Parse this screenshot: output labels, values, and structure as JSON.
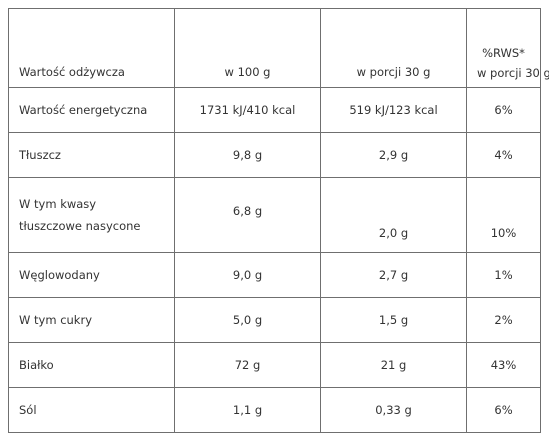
{
  "header": {
    "name": "Wartość odżywcza",
    "per100": "w 100 g",
    "per30": "w porcji 30 g",
    "rws_line1": "%RWS*",
    "rws_line2": "w porcji 30 g"
  },
  "rows": [
    {
      "name": "Wartość energetyczna",
      "per100": "1731 kJ/410 kcal",
      "per30": "519 kJ/123 kcal",
      "rws": "6%"
    },
    {
      "name": "Tłuszcz",
      "per100": "9,8 g",
      "per30": "2,9 g",
      "rws": "4%"
    },
    {
      "name_line1": "W tym kwasy",
      "name_line2": "tłuszczowe nasycone",
      "per100": "6,8 g",
      "per30": "2,0 g",
      "rws": "10%"
    },
    {
      "name": "Węglowodany",
      "per100": "9,0 g",
      "per30": "2,7 g",
      "rws": "1%"
    },
    {
      "name": "W tym cukry",
      "per100": "5,0 g",
      "per30": "1,5 g",
      "rws": "2%"
    },
    {
      "name": "Białko",
      "per100": "72 g",
      "per30": "21 g",
      "rws": "43%"
    },
    {
      "name": "Sól",
      "per100": "1,1 g",
      "per30": "0,33 g",
      "rws": "6%"
    }
  ]
}
